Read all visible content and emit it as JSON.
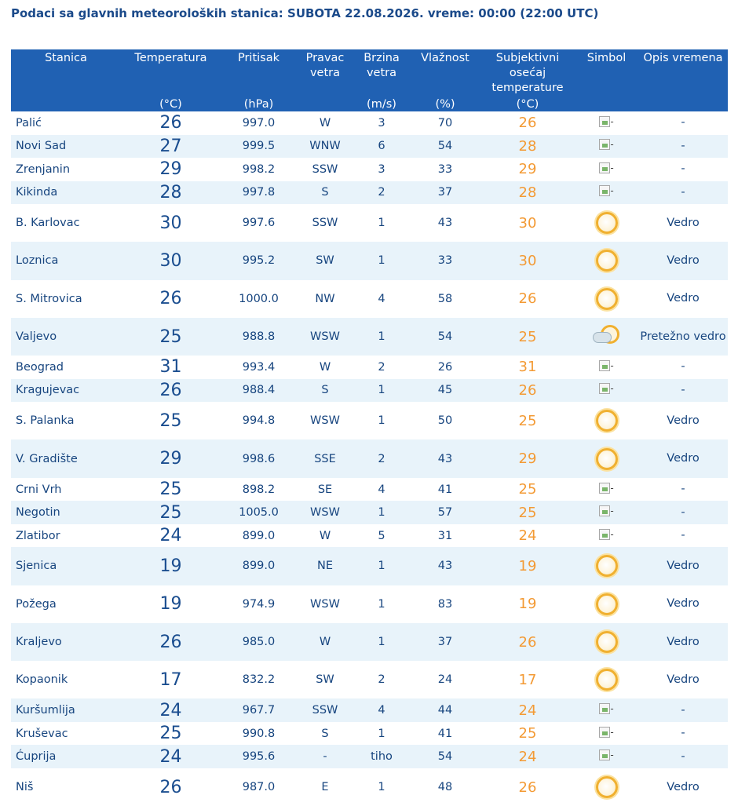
{
  "header": {
    "title": "Podaci sa glavnih meteoroloških stanica:  SUBOTA 22.08.2026.  vreme: 00:00 (22:00 UTC)"
  },
  "columns": [
    {
      "label": "Stanica",
      "unit": ""
    },
    {
      "label": "Temperatura",
      "unit": "(°C)"
    },
    {
      "label": "Pritisak",
      "unit": "(hPa)"
    },
    {
      "label": "Pravac vetra",
      "unit": ""
    },
    {
      "label": "Brzina vetra",
      "unit": "(m/s)"
    },
    {
      "label": "Vlažnost",
      "unit": "(%)"
    },
    {
      "label": "Subjektivni osećaj temperature",
      "unit": "(°C)"
    },
    {
      "label": "Simbol",
      "unit": ""
    },
    {
      "label": "Opis vremena",
      "unit": ""
    }
  ],
  "icons": {
    "broken-image-alt": "-",
    "sun": "sun-icon",
    "partly-cloudy": "partly-cloudy-icon"
  },
  "colors": {
    "header_bg": "#2061b3",
    "row_alt_bg": "#e8f3fa",
    "text": "#17457f",
    "feel_temp": "#f39a34"
  },
  "rows": [
    {
      "station": "Palić",
      "temp": "26",
      "pressure": "997.0",
      "dir": "W",
      "speed": "3",
      "hum": "70",
      "feel": "26",
      "symbol": "broken",
      "desc": "-"
    },
    {
      "station": "Novi Sad",
      "temp": "27",
      "pressure": "999.5",
      "dir": "WNW",
      "speed": "6",
      "hum": "54",
      "feel": "28",
      "symbol": "broken",
      "desc": "-"
    },
    {
      "station": "Zrenjanin",
      "temp": "29",
      "pressure": "998.2",
      "dir": "SSW",
      "speed": "3",
      "hum": "33",
      "feel": "29",
      "symbol": "broken",
      "desc": "-"
    },
    {
      "station": "Kikinda",
      "temp": "28",
      "pressure": "997.8",
      "dir": "S",
      "speed": "2",
      "hum": "37",
      "feel": "28",
      "symbol": "broken",
      "desc": "-"
    },
    {
      "station": "B. Karlovac",
      "temp": "30",
      "pressure": "997.6",
      "dir": "SSW",
      "speed": "1",
      "hum": "43",
      "feel": "30",
      "symbol": "sun",
      "desc": "Vedro"
    },
    {
      "station": "Loznica",
      "temp": "30",
      "pressure": "995.2",
      "dir": "SW",
      "speed": "1",
      "hum": "33",
      "feel": "30",
      "symbol": "sun",
      "desc": "Vedro"
    },
    {
      "station": "S. Mitrovica",
      "temp": "26",
      "pressure": "1000.0",
      "dir": "NW",
      "speed": "4",
      "hum": "58",
      "feel": "26",
      "symbol": "sun",
      "desc": "Vedro"
    },
    {
      "station": "Valjevo",
      "temp": "25",
      "pressure": "988.8",
      "dir": "WSW",
      "speed": "1",
      "hum": "54",
      "feel": "25",
      "symbol": "partly",
      "desc": "Pretežno vedro"
    },
    {
      "station": "Beograd",
      "temp": "31",
      "pressure": "993.4",
      "dir": "W",
      "speed": "2",
      "hum": "26",
      "feel": "31",
      "symbol": "broken",
      "desc": "-"
    },
    {
      "station": "Kragujevac",
      "temp": "26",
      "pressure": "988.4",
      "dir": "S",
      "speed": "1",
      "hum": "45",
      "feel": "26",
      "symbol": "broken",
      "desc": "-"
    },
    {
      "station": "S. Palanka",
      "temp": "25",
      "pressure": "994.8",
      "dir": "WSW",
      "speed": "1",
      "hum": "50",
      "feel": "25",
      "symbol": "sun",
      "desc": "Vedro"
    },
    {
      "station": "V. Gradište",
      "temp": "29",
      "pressure": "998.6",
      "dir": "SSE",
      "speed": "2",
      "hum": "43",
      "feel": "29",
      "symbol": "sun",
      "desc": "Vedro"
    },
    {
      "station": "Crni Vrh",
      "temp": "25",
      "pressure": "898.2",
      "dir": "SE",
      "speed": "4",
      "hum": "41",
      "feel": "25",
      "symbol": "broken",
      "desc": "-"
    },
    {
      "station": "Negotin",
      "temp": "25",
      "pressure": "1005.0",
      "dir": "WSW",
      "speed": "1",
      "hum": "57",
      "feel": "25",
      "symbol": "broken",
      "desc": "-"
    },
    {
      "station": "Zlatibor",
      "temp": "24",
      "pressure": "899.0",
      "dir": "W",
      "speed": "5",
      "hum": "31",
      "feel": "24",
      "symbol": "broken",
      "desc": "-"
    },
    {
      "station": "Sjenica",
      "temp": "19",
      "pressure": "899.0",
      "dir": "NE",
      "speed": "1",
      "hum": "43",
      "feel": "19",
      "symbol": "sun",
      "desc": "Vedro"
    },
    {
      "station": "Požega",
      "temp": "19",
      "pressure": "974.9",
      "dir": "WSW",
      "speed": "1",
      "hum": "83",
      "feel": "19",
      "symbol": "sun",
      "desc": "Vedro"
    },
    {
      "station": "Kraljevo",
      "temp": "26",
      "pressure": "985.0",
      "dir": "W",
      "speed": "1",
      "hum": "37",
      "feel": "26",
      "symbol": "sun",
      "desc": "Vedro"
    },
    {
      "station": "Kopaonik",
      "temp": "17",
      "pressure": "832.2",
      "dir": "SW",
      "speed": "2",
      "hum": "24",
      "feel": "17",
      "symbol": "sun",
      "desc": "Vedro"
    },
    {
      "station": "Kuršumlija",
      "temp": "24",
      "pressure": "967.7",
      "dir": "SSW",
      "speed": "4",
      "hum": "44",
      "feel": "24",
      "symbol": "broken",
      "desc": "-"
    },
    {
      "station": "Kruševac",
      "temp": "25",
      "pressure": "990.8",
      "dir": "S",
      "speed": "1",
      "hum": "41",
      "feel": "25",
      "symbol": "broken",
      "desc": "-"
    },
    {
      "station": "Ćuprija",
      "temp": "24",
      "pressure": "995.6",
      "dir": "-",
      "speed": "tiho",
      "hum": "54",
      "feel": "24",
      "symbol": "broken",
      "desc": "-"
    },
    {
      "station": "Niš",
      "temp": "26",
      "pressure": "987.0",
      "dir": "E",
      "speed": "1",
      "hum": "48",
      "feel": "26",
      "symbol": "sun",
      "desc": "Vedro"
    }
  ]
}
